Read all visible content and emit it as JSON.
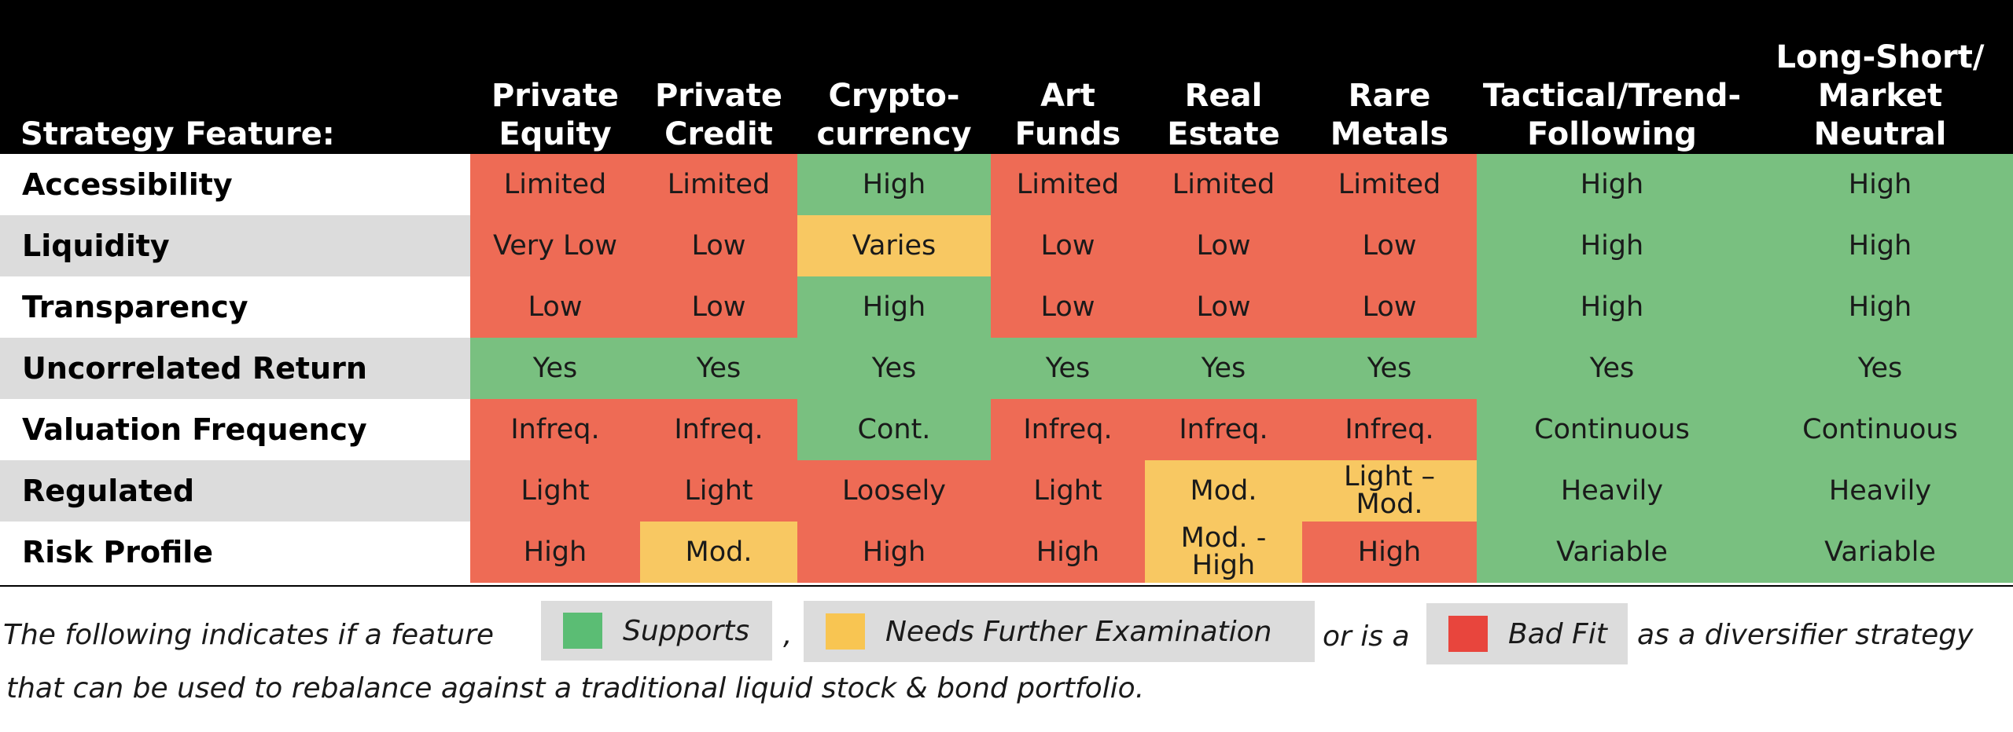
{
  "colors": {
    "header_bg": "#000000",
    "supports_green": "#79c080",
    "needs_examination_yellow": "#f8c862",
    "bad_fit_red": "#ee6b55",
    "label_shade": "#dcdcdc",
    "legend_green": "#5bbd74",
    "legend_yellow": "#f8c552",
    "legend_red": "#e8453d"
  },
  "header": {
    "feature_label": "Strategy Feature:",
    "columns": [
      "Private\nEquity",
      "Private\nCredit",
      "Crypto-\ncurrency",
      "Art\nFunds",
      "Real\nEstate",
      "Rare\nMetals",
      "Tactical/Trend-\nFollowing",
      "Long-Short/\nMarket Neutral"
    ]
  },
  "rows": [
    {
      "label": "Accessibility",
      "cells": [
        {
          "text": "Limited",
          "rating": "bad"
        },
        {
          "text": "Limited",
          "rating": "bad"
        },
        {
          "text": "High",
          "rating": "supports"
        },
        {
          "text": "Limited",
          "rating": "bad"
        },
        {
          "text": "Limited",
          "rating": "bad"
        },
        {
          "text": "Limited",
          "rating": "bad"
        },
        {
          "text": "High",
          "rating": "supports"
        },
        {
          "text": "High",
          "rating": "supports"
        }
      ]
    },
    {
      "label": "Liquidity",
      "cells": [
        {
          "text": "Very Low",
          "rating": "bad"
        },
        {
          "text": "Low",
          "rating": "bad"
        },
        {
          "text": "Varies",
          "rating": "examine"
        },
        {
          "text": "Low",
          "rating": "bad"
        },
        {
          "text": "Low",
          "rating": "bad"
        },
        {
          "text": "Low",
          "rating": "bad"
        },
        {
          "text": "High",
          "rating": "supports"
        },
        {
          "text": "High",
          "rating": "supports"
        }
      ]
    },
    {
      "label": "Transparency",
      "cells": [
        {
          "text": "Low",
          "rating": "bad"
        },
        {
          "text": "Low",
          "rating": "bad"
        },
        {
          "text": "High",
          "rating": "supports"
        },
        {
          "text": "Low",
          "rating": "bad"
        },
        {
          "text": "Low",
          "rating": "bad"
        },
        {
          "text": "Low",
          "rating": "bad"
        },
        {
          "text": "High",
          "rating": "supports"
        },
        {
          "text": "High",
          "rating": "supports"
        }
      ]
    },
    {
      "label": "Uncorrelated Return",
      "cells": [
        {
          "text": "Yes",
          "rating": "supports"
        },
        {
          "text": "Yes",
          "rating": "supports"
        },
        {
          "text": "Yes",
          "rating": "supports"
        },
        {
          "text": "Yes",
          "rating": "supports"
        },
        {
          "text": "Yes",
          "rating": "supports"
        },
        {
          "text": "Yes",
          "rating": "supports"
        },
        {
          "text": "Yes",
          "rating": "supports"
        },
        {
          "text": "Yes",
          "rating": "supports"
        }
      ]
    },
    {
      "label": "Valuation Frequency",
      "cells": [
        {
          "text": "Infreq.",
          "rating": "bad"
        },
        {
          "text": "Infreq.",
          "rating": "bad"
        },
        {
          "text": "Cont.",
          "rating": "supports"
        },
        {
          "text": "Infreq.",
          "rating": "bad"
        },
        {
          "text": "Infreq.",
          "rating": "bad"
        },
        {
          "text": "Infreq.",
          "rating": "bad"
        },
        {
          "text": "Continuous",
          "rating": "supports"
        },
        {
          "text": "Continuous",
          "rating": "supports"
        }
      ]
    },
    {
      "label": "Regulated",
      "cells": [
        {
          "text": "Light",
          "rating": "bad"
        },
        {
          "text": "Light",
          "rating": "bad"
        },
        {
          "text": "Loosely",
          "rating": "bad"
        },
        {
          "text": "Light",
          "rating": "bad"
        },
        {
          "text": "Mod.",
          "rating": "examine"
        },
        {
          "text": "Light –\nMod.",
          "rating": "examine"
        },
        {
          "text": "Heavily",
          "rating": "supports"
        },
        {
          "text": "Heavily",
          "rating": "supports"
        }
      ]
    },
    {
      "label": "Risk Profile",
      "cells": [
        {
          "text": "High",
          "rating": "bad"
        },
        {
          "text": "Mod.",
          "rating": "examine"
        },
        {
          "text": "High",
          "rating": "bad"
        },
        {
          "text": "High",
          "rating": "bad"
        },
        {
          "text": "Mod. -\nHigh",
          "rating": "examine"
        },
        {
          "text": "High",
          "rating": "bad"
        },
        {
          "text": "Variable",
          "rating": "supports"
        },
        {
          "text": "Variable",
          "rating": "supports"
        }
      ]
    }
  ],
  "legend": {
    "intro": "The following indicates if a feature",
    "supports_label": "Supports",
    "comma": ",",
    "examine_label": "Needs Further Examination",
    "or_is_a": "or is a",
    "bad_label": "Bad Fit",
    "suffix": "as a diversifier strategy",
    "line2": "that can be used to rebalance against a traditional liquid stock & bond portfolio."
  }
}
